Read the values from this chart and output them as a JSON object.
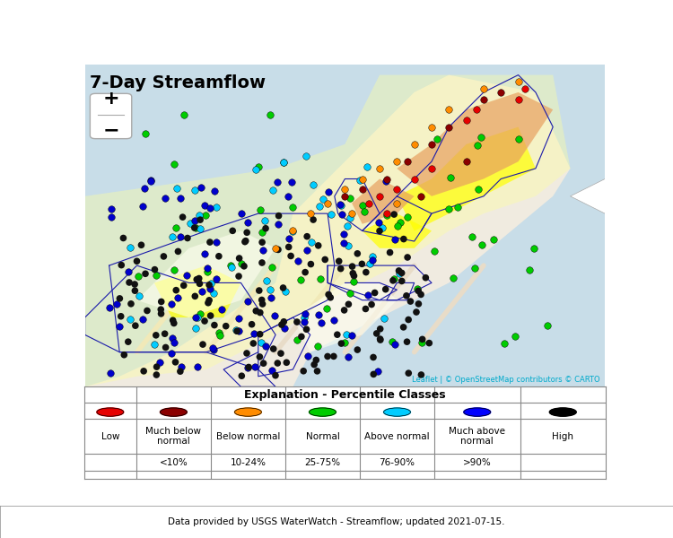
{
  "title": "7-Day Streamflow",
  "fig_width": 7.5,
  "fig_height": 6.0,
  "dpi": 100,
  "map_bg_color": "#d6e8f5",
  "land_color": "#f5f0e8",
  "legend_title": "Explanation - Percentile Classes",
  "categories": [
    "Low",
    "Much below\nnormal",
    "Below normal",
    "Normal",
    "Above normal",
    "Much above\nnormal",
    "High"
  ],
  "percentiles": [
    "",
    "<10%",
    "10-24%",
    "25-75%",
    "76-90%",
    ">90%",
    ""
  ],
  "dot_colors": [
    "#e60000",
    "#8b0000",
    "#ff8c00",
    "#00b300",
    "#00e5ff",
    "#0000cd",
    "#000000"
  ],
  "dot_colors_hex": [
    "#e60000",
    "#8b0000",
    "#ff8c00",
    "#00cc00",
    "#00ccff",
    "#0000ff",
    "#000000"
  ],
  "attribution_text": "Leaflet | © OpenStreetMap contributors © CARTO",
  "attribution_color": "#00aacc",
  "data_text": "Data provided by USGS WaterWatch - Streamflow; updated 2021-07-15.",
  "map_background": "#d4e6f1",
  "ocean_color": "#c8dde8",
  "land_base": "#f0ebe0",
  "road_color": "#e8dcc8",
  "state_border_color": "#1a1aaa",
  "zoom_plus_label": "+",
  "zoom_minus_label": "−"
}
